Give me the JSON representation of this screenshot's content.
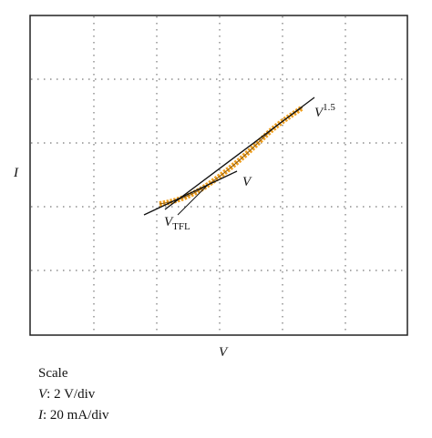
{
  "axes": {
    "x_label": "V",
    "y_label": "I"
  },
  "annotations": {
    "power_law": {
      "base": "V",
      "exponent": "1.5"
    },
    "linear": "V",
    "threshold": {
      "base": "V",
      "subscript": "TFL"
    }
  },
  "scale": {
    "title": "Scale",
    "lines": [
      {
        "symbol": "V",
        "text": ": 2 V/div"
      },
      {
        "symbol": "I",
        "text": ": 20 mA/div"
      }
    ]
  }
}
